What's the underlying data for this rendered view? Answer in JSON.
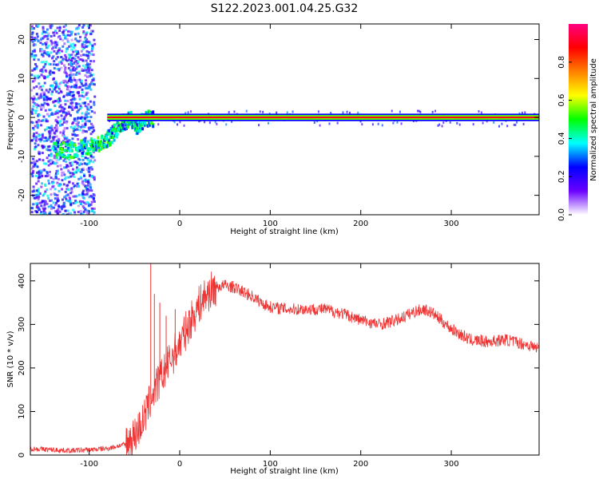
{
  "title": "S122.2023.001.04.25.G32",
  "chart_data": [
    {
      "type": "heatmap",
      "xlabel": "Height of straight line (km)",
      "ylabel": "Frequency (Hz)",
      "xlim": [
        -165,
        397
      ],
      "ylim": [
        -25,
        24
      ],
      "xticks": [
        -100,
        0,
        100,
        200,
        300
      ],
      "yticks": [
        -20,
        -10,
        0,
        10,
        20
      ],
      "grid": false,
      "colorbar": {
        "label": "Normalized spectral amplitude",
        "range": [
          0,
          1
        ],
        "ticks": [
          0.0,
          0.2,
          0.4,
          0.6,
          0.8
        ],
        "colors": [
          "#ffffff",
          "#6a00ff",
          "#0000ff",
          "#00ffff",
          "#00ff00",
          "#ffff00",
          "#ff8000",
          "#ff0000",
          "#ff0080"
        ]
      },
      "band": {
        "frequency_hz": 0,
        "half_width_hz": 0.6,
        "start_km": -80,
        "mean_amplitude": 0.9
      },
      "low_freq_trail": {
        "x_km": [
          -140,
          -120,
          -100,
          -85,
          -75,
          -65,
          -55,
          -48,
          -40,
          -30
        ],
        "y_hz": [
          -8,
          -8,
          -7,
          -6,
          -4,
          -1,
          0,
          -2,
          0,
          0
        ]
      },
      "noise_region_km": [
        -165,
        -95
      ]
    },
    {
      "type": "line",
      "xlabel": "Height of straight line (km)",
      "ylabel": "SNR (10 * v/v)",
      "xlim": [
        -165,
        397
      ],
      "ylim": [
        0,
        440
      ],
      "xticks": [
        -100,
        0,
        100,
        200,
        300
      ],
      "yticks": [
        0,
        100,
        200,
        300,
        400
      ],
      "grid": false,
      "color": "#ee3333",
      "x": [
        -165,
        -140,
        -120,
        -100,
        -80,
        -60,
        -50,
        -40,
        -30,
        -20,
        -10,
        0,
        10,
        20,
        30,
        40,
        50,
        60,
        70,
        80,
        90,
        100,
        120,
        140,
        160,
        180,
        200,
        220,
        240,
        260,
        270,
        280,
        300,
        320,
        340,
        360,
        380,
        397
      ],
      "y": [
        15,
        12,
        10,
        12,
        15,
        25,
        45,
        80,
        140,
        180,
        220,
        255,
        300,
        340,
        370,
        385,
        390,
        385,
        375,
        365,
        350,
        340,
        335,
        335,
        335,
        325,
        310,
        300,
        310,
        330,
        335,
        325,
        290,
        265,
        260,
        265,
        255,
        245
      ],
      "spikes": [
        {
          "x": -32,
          "y": 440
        },
        {
          "x": -28,
          "y": 370
        },
        {
          "x": -22,
          "y": 350
        },
        {
          "x": -15,
          "y": 320
        },
        {
          "x": -5,
          "y": 335
        }
      ]
    }
  ]
}
